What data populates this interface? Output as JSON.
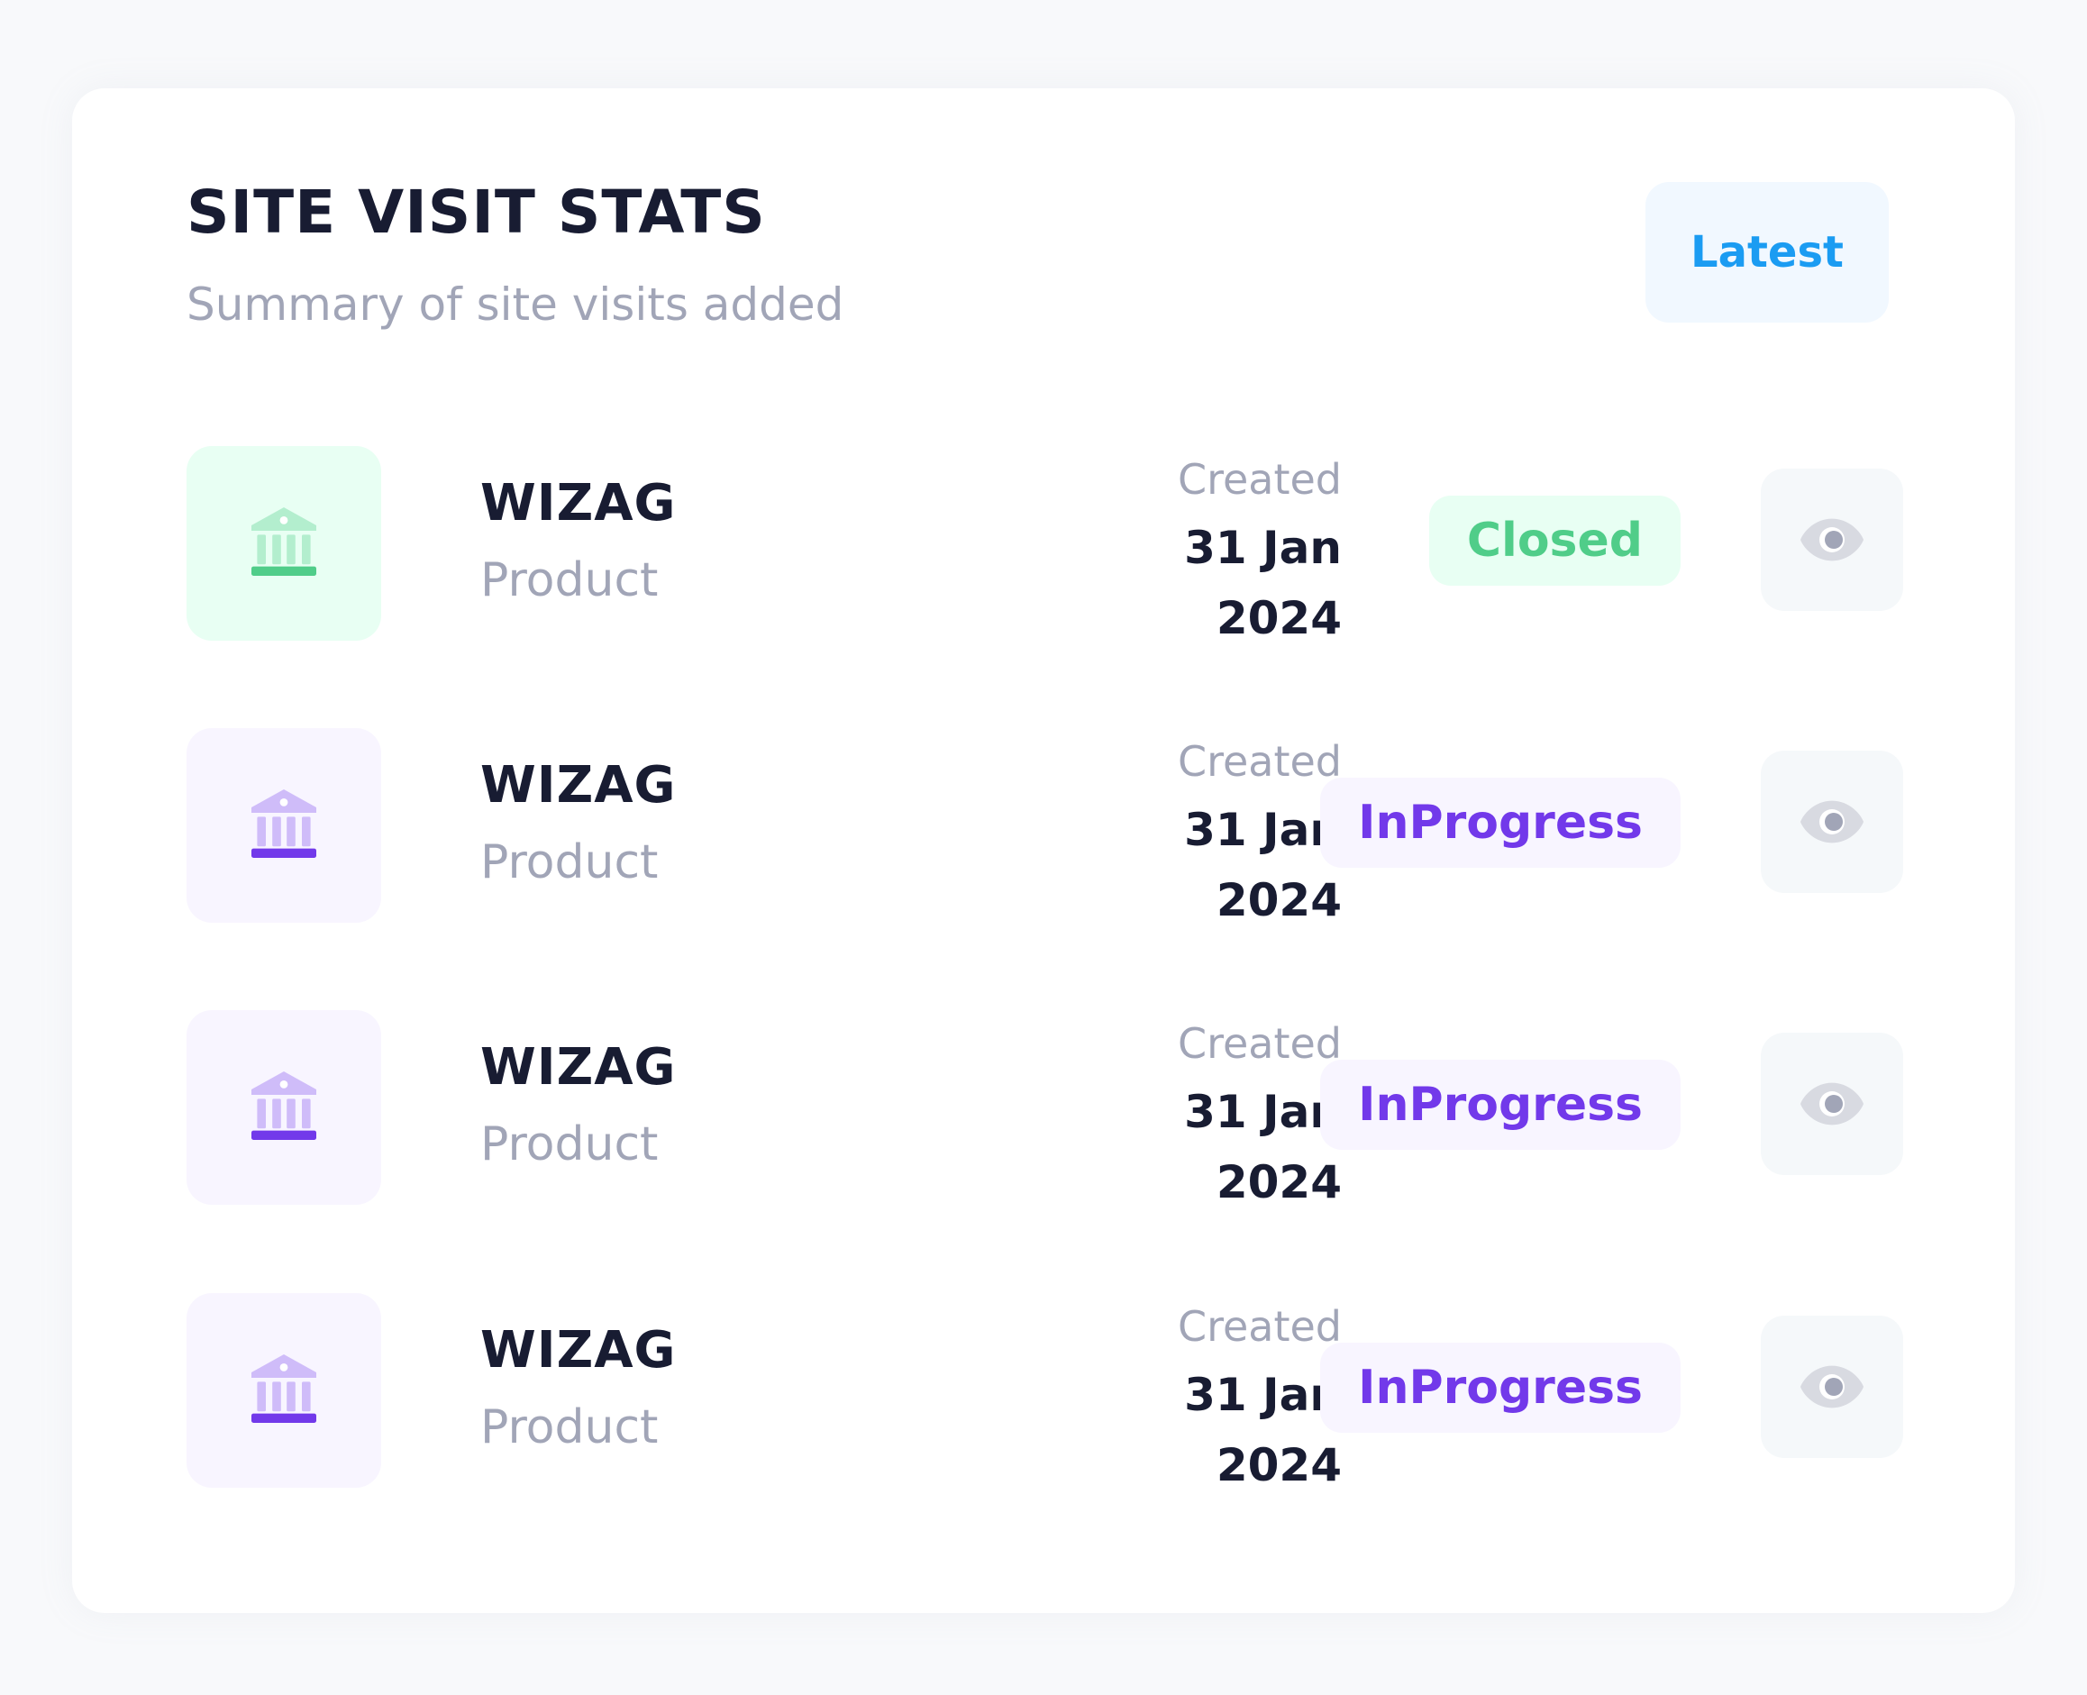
{
  "header": {
    "title": "SITE VISIT STATS",
    "subtitle": "Summary of site visits added",
    "filter_label": "Latest"
  },
  "colors": {
    "title": "#181c32",
    "muted": "#a1a5b7",
    "success": "#50cd89",
    "success_light": "#e8fff3",
    "primary": "#7239ea",
    "primary_light": "#f8f5ff",
    "info": "#1b9cf2",
    "info_light": "#f1f8ff"
  },
  "visits": [
    {
      "icon": "bank-icon",
      "name": "WIZAG",
      "type": "Product",
      "created_label": "Created",
      "created_date": "31 Jan 2024",
      "status": "Closed",
      "status_color": "#50cd89",
      "view_icon": "eye-icon"
    },
    {
      "icon": "bank-icon",
      "name": "WIZAG",
      "type": "Product",
      "created_label": "Created",
      "created_date": "31 Jan 2024",
      "status": "InProgress",
      "status_color": "#7239ea",
      "view_icon": "eye-icon"
    },
    {
      "icon": "bank-icon",
      "name": "WIZAG",
      "type": "Product",
      "created_label": "Created",
      "created_date": "31 Jan 2024",
      "status": "InProgress",
      "status_color": "#7239ea",
      "view_icon": "eye-icon"
    },
    {
      "icon": "bank-icon",
      "name": "WIZAG",
      "type": "Product",
      "created_label": "Created",
      "created_date": "31 Jan 2024",
      "status": "InProgress",
      "status_color": "#7239ea",
      "view_icon": "eye-icon"
    }
  ]
}
